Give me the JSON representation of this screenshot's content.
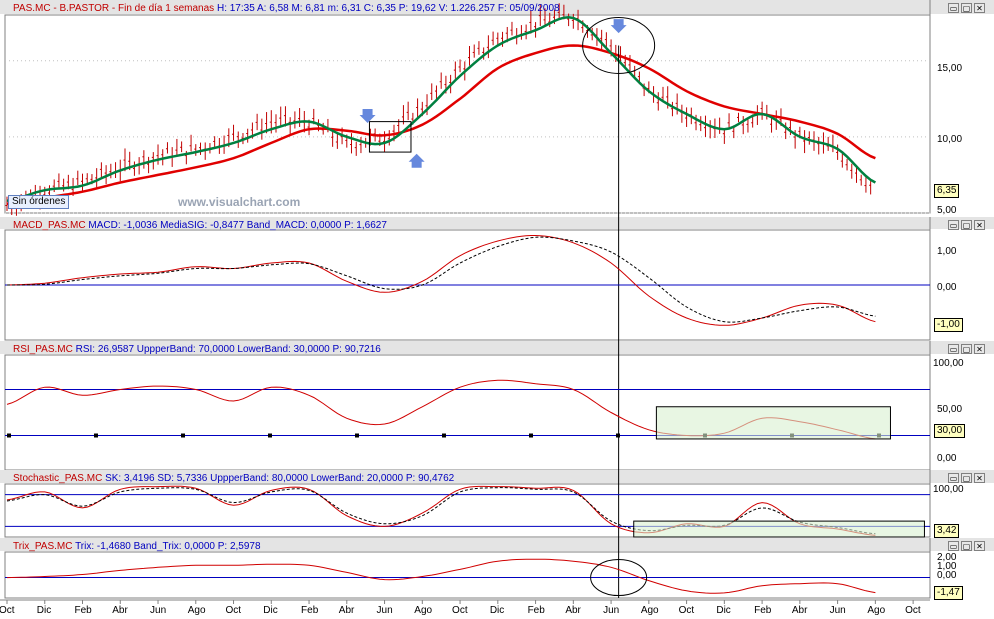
{
  "panels": {
    "price": {
      "title": "PAS.MC - B.PASTOR - Fin de día 1 semanas",
      "values": "H: 17:35  A: 6,58  M: 6,81  m: 6,31  C: 6,35  P: 19,62  V: 1.226.257  F: 05/09/2008",
      "yticks": [
        "15,00",
        "10,00",
        "5,00"
      ],
      "current": "6,35"
    },
    "macd": {
      "title": "MACD_PAS.MC",
      "values": "MACD: -1,0036  MediaSIG: -0,8477  Band_MACD: 0,0000  P: 1,6627",
      "yticks": [
        "1,00",
        "0,00",
        "-1,00"
      ],
      "current": "-1,00"
    },
    "rsi": {
      "title": "RSI_PAS.MC",
      "values": "RSI: 26,9587  UppperBand: 70,0000  LowerBand: 30,0000  P: 90,7216",
      "yticks": [
        "100,00",
        "50,00",
        "0,00"
      ],
      "current": "30,00"
    },
    "stoch": {
      "title": "Stochastic_PAS.MC",
      "values": "SK: 3,4196  SD: 5,7336  UppperBand: 80,0000  LowerBand: 20,0000  P: 90,4762",
      "yticks": [
        "100,00",
        "0,00"
      ],
      "current": "3,42"
    },
    "trix": {
      "title": "Trix_PAS.MC",
      "values": "Trix: -1,4680  Band_Trix: 0,0000  P: 2,5978",
      "yticks": [
        "2,00",
        "1,00",
        "0,00"
      ],
      "current": "-1,47"
    }
  },
  "orders_label": "Sin órdenes",
  "watermark": "www.visualchart.com",
  "window_buttons": [
    "▭",
    "▢",
    "✕"
  ],
  "x_labels": [
    "Oct",
    "Dic",
    "Feb",
    "Abr",
    "Jun",
    "Ago",
    "Oct",
    "Dic",
    "Feb",
    "Abr",
    "Jun",
    "Ago",
    "Oct",
    "Dic",
    "Feb",
    "Abr",
    "Jun",
    "Ago",
    "Oct",
    "Dic",
    "Feb",
    "Abr",
    "Jun",
    "Ago",
    "Oct"
  ],
  "colors": {
    "price_bars": "#c00000",
    "ma_fast": "#008040",
    "ma_slow": "#e00000",
    "indicator": "#d00000",
    "band": "#0000c0",
    "highlight_fill": "#d8f0d0",
    "marker_arrow": "#6688dd"
  },
  "chart_data": [
    {
      "type": "line",
      "title": "PAS.MC - B.PASTOR",
      "x": [
        "Oct",
        "Dic",
        "Feb",
        "Abr",
        "Jun",
        "Ago",
        "Oct",
        "Dic",
        "Feb",
        "Abr",
        "Jun",
        "Ago",
        "Oct",
        "Dic",
        "Feb",
        "Abr",
        "Jun",
        "Ago",
        "Oct",
        "Dic",
        "Feb",
        "Abr",
        "Jun",
        "Ago"
      ],
      "series": [
        {
          "name": "price",
          "values": [
            5.5,
            6.5,
            7.0,
            8.0,
            8.8,
            9.2,
            10.0,
            11.0,
            11.0,
            9.5,
            10.0,
            12.0,
            14.5,
            16.5,
            17.5,
            18.0,
            16.0,
            13.0,
            11.5,
            10.5,
            11.5,
            10.0,
            9.0,
            6.5
          ]
        },
        {
          "name": "ma_fast",
          "values": [
            5.8,
            6.5,
            6.8,
            7.8,
            8.5,
            9.0,
            9.6,
            10.5,
            11.0,
            10.0,
            9.6,
            11.5,
            14.0,
            16.0,
            17.0,
            17.8,
            15.5,
            13.0,
            11.5,
            10.5,
            11.5,
            10.0,
            9.2,
            7.0
          ]
        },
        {
          "name": "ma_slow",
          "values": [
            5.6,
            6.0,
            6.4,
            7.0,
            7.5,
            8.0,
            8.6,
            9.6,
            10.5,
            10.4,
            10.1,
            10.8,
            12.5,
            14.5,
            15.5,
            16.0,
            15.5,
            14.5,
            13.0,
            12.0,
            11.5,
            11.0,
            10.2,
            8.6
          ]
        }
      ],
      "ylim": [
        5,
        18
      ],
      "current": 6.35
    },
    {
      "type": "line",
      "title": "MACD_PAS.MC",
      "x": [
        "Oct",
        "Dic",
        "Feb",
        "Abr",
        "Jun",
        "Ago",
        "Oct",
        "Dic",
        "Feb",
        "Abr",
        "Jun",
        "Ago",
        "Oct",
        "Dic",
        "Feb",
        "Abr",
        "Jun",
        "Ago",
        "Oct",
        "Dic",
        "Feb",
        "Abr",
        "Jun",
        "Ago"
      ],
      "series": [
        {
          "name": "MACD",
          "values": [
            0.0,
            0.05,
            0.2,
            0.3,
            0.35,
            0.5,
            0.45,
            0.6,
            0.6,
            0.1,
            -0.2,
            0.1,
            0.8,
            1.2,
            1.35,
            1.15,
            0.6,
            -0.3,
            -0.9,
            -1.1,
            -0.9,
            -0.55,
            -0.55,
            -1.0
          ]
        },
        {
          "name": "MediaSIG",
          "values": [
            0.0,
            0.02,
            0.15,
            0.25,
            0.32,
            0.45,
            0.45,
            0.55,
            0.58,
            0.25,
            -0.1,
            0.0,
            0.6,
            1.05,
            1.3,
            1.2,
            0.9,
            0.2,
            -0.6,
            -1.0,
            -0.9,
            -0.7,
            -0.6,
            -0.85
          ]
        }
      ],
      "ylim": [
        -1.5,
        1.5
      ],
      "bands": [
        0
      ]
    },
    {
      "type": "line",
      "title": "RSI_PAS.MC",
      "x": [
        "Oct",
        "Dic",
        "Feb",
        "Abr",
        "Jun",
        "Ago",
        "Oct",
        "Dic",
        "Feb",
        "Abr",
        "Jun",
        "Ago",
        "Oct",
        "Dic",
        "Feb",
        "Abr",
        "Jun",
        "Ago",
        "Oct",
        "Dic",
        "Feb",
        "Abr",
        "Jun",
        "Ago"
      ],
      "series": [
        {
          "name": "RSI",
          "values": [
            57,
            72,
            65,
            70,
            73,
            70,
            60,
            72,
            65,
            45,
            40,
            55,
            72,
            78,
            75,
            70,
            50,
            35,
            30,
            32,
            45,
            42,
            35,
            27
          ]
        }
      ],
      "ylim": [
        0,
        100
      ],
      "bands": [
        70,
        30
      ]
    },
    {
      "type": "line",
      "title": "Stochastic_PAS.MC",
      "x": [
        "Oct",
        "Dic",
        "Feb",
        "Abr",
        "Jun",
        "Ago",
        "Oct",
        "Dic",
        "Feb",
        "Abr",
        "Jun",
        "Ago",
        "Oct",
        "Dic",
        "Feb",
        "Abr",
        "Jun",
        "Ago",
        "Oct",
        "Dic",
        "Feb",
        "Abr",
        "Jun",
        "Ago"
      ],
      "series": [
        {
          "name": "SK",
          "values": [
            70,
            85,
            55,
            90,
            95,
            92,
            60,
            88,
            90,
            40,
            20,
            45,
            90,
            95,
            92,
            88,
            25,
            8,
            25,
            20,
            65,
            25,
            15,
            3
          ]
        },
        {
          "name": "SD",
          "values": [
            68,
            80,
            58,
            85,
            92,
            90,
            65,
            85,
            88,
            45,
            25,
            40,
            85,
            93,
            90,
            85,
            30,
            12,
            22,
            22,
            55,
            28,
            18,
            6
          ]
        }
      ],
      "ylim": [
        0,
        100
      ],
      "bands": [
        80,
        20
      ]
    },
    {
      "type": "line",
      "title": "Trix_PAS.MC",
      "x": [
        "Oct",
        "Dic",
        "Feb",
        "Abr",
        "Jun",
        "Ago",
        "Oct",
        "Dic",
        "Feb",
        "Abr",
        "Jun",
        "Ago",
        "Oct",
        "Dic",
        "Feb",
        "Abr",
        "Jun",
        "Ago",
        "Oct",
        "Dic",
        "Feb",
        "Abr",
        "Jun",
        "Ago"
      ],
      "series": [
        {
          "name": "Trix",
          "values": [
            0.0,
            0.1,
            0.3,
            0.7,
            1.0,
            1.2,
            1.2,
            1.3,
            1.2,
            0.5,
            -0.2,
            0.1,
            0.8,
            1.6,
            1.8,
            1.6,
            1.0,
            -0.3,
            -1.3,
            -1.5,
            -0.8,
            -0.6,
            -0.6,
            -1.47
          ]
        }
      ],
      "ylim": [
        -2,
        2.5
      ],
      "bands": [
        0
      ]
    }
  ]
}
